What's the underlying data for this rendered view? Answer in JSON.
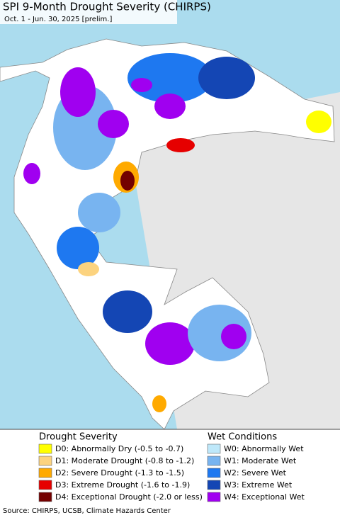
{
  "header": {
    "title": "SPI 9-Month Drought Severity (CHIRPS)",
    "subtitle": "Oct. 1 - Jun. 30, 2025 [prelim.]"
  },
  "legend": {
    "drought": {
      "title": "Drought Severity",
      "items": [
        {
          "label": "D0: Abnormally Dry (-0.5 to -0.7)",
          "color": "#ffff00"
        },
        {
          "label": "D1: Moderate Drought (-0.8 to -1.2)",
          "color": "#fcd37f"
        },
        {
          "label": "D2: Severe Drought (-1.3 to -1.5)",
          "color": "#ffaa00"
        },
        {
          "label": "D3: Extreme Drought (-1.6 to -1.9)",
          "color": "#e60000"
        },
        {
          "label": "D4: Exceptional Drought (-2.0 or less)",
          "color": "#730000"
        }
      ]
    },
    "wet": {
      "title": "Wet Conditions",
      "items": [
        {
          "label": "W0: Abnormally Wet",
          "color": "#bee8fa"
        },
        {
          "label": "W1: Moderate Wet",
          "color": "#78b4f0"
        },
        {
          "label": "W2: Severe Wet",
          "color": "#1e78f0"
        },
        {
          "label": "W3: Extreme Wet",
          "color": "#1446b4"
        },
        {
          "label": "W4: Exceptional Wet",
          "color": "#a000f0"
        }
      ]
    }
  },
  "source": "Source: CHIRPS, UCSB, Climate Hazards Center"
}
